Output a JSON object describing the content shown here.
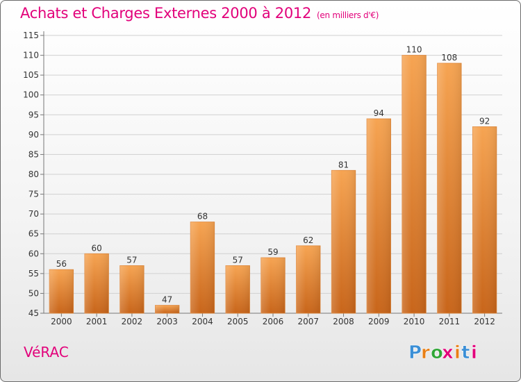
{
  "title": "Achats et Charges Externes 2000 à 2012",
  "unit_note": "(en milliers d'€)",
  "city": "VéRAC",
  "logo": {
    "text": "Proxiti",
    "letters": [
      "P",
      "r",
      "o",
      "x",
      "i",
      "t",
      "i"
    ],
    "colors": [
      "#3b8fd6",
      "#e87f16",
      "#2fa636",
      "#e2007a",
      "#e87f16",
      "#3b8fd6",
      "#e2007a"
    ]
  },
  "colors": {
    "title": "#e2007a",
    "bar_top": "#f6a452",
    "bar_bottom": "#c8651a"
  },
  "chart_data": {
    "type": "bar",
    "categories": [
      "2000",
      "2001",
      "2002",
      "2003",
      "2004",
      "2005",
      "2006",
      "2007",
      "2008",
      "2009",
      "2010",
      "2011",
      "2012"
    ],
    "values": [
      56,
      60,
      57,
      47,
      68,
      57,
      59,
      62,
      81,
      94,
      110,
      108,
      92
    ],
    "ylim": [
      45,
      115
    ],
    "yticks": [
      45,
      50,
      55,
      60,
      65,
      70,
      75,
      80,
      85,
      90,
      95,
      100,
      105,
      110,
      115
    ],
    "grid": true,
    "data_labels": true
  }
}
